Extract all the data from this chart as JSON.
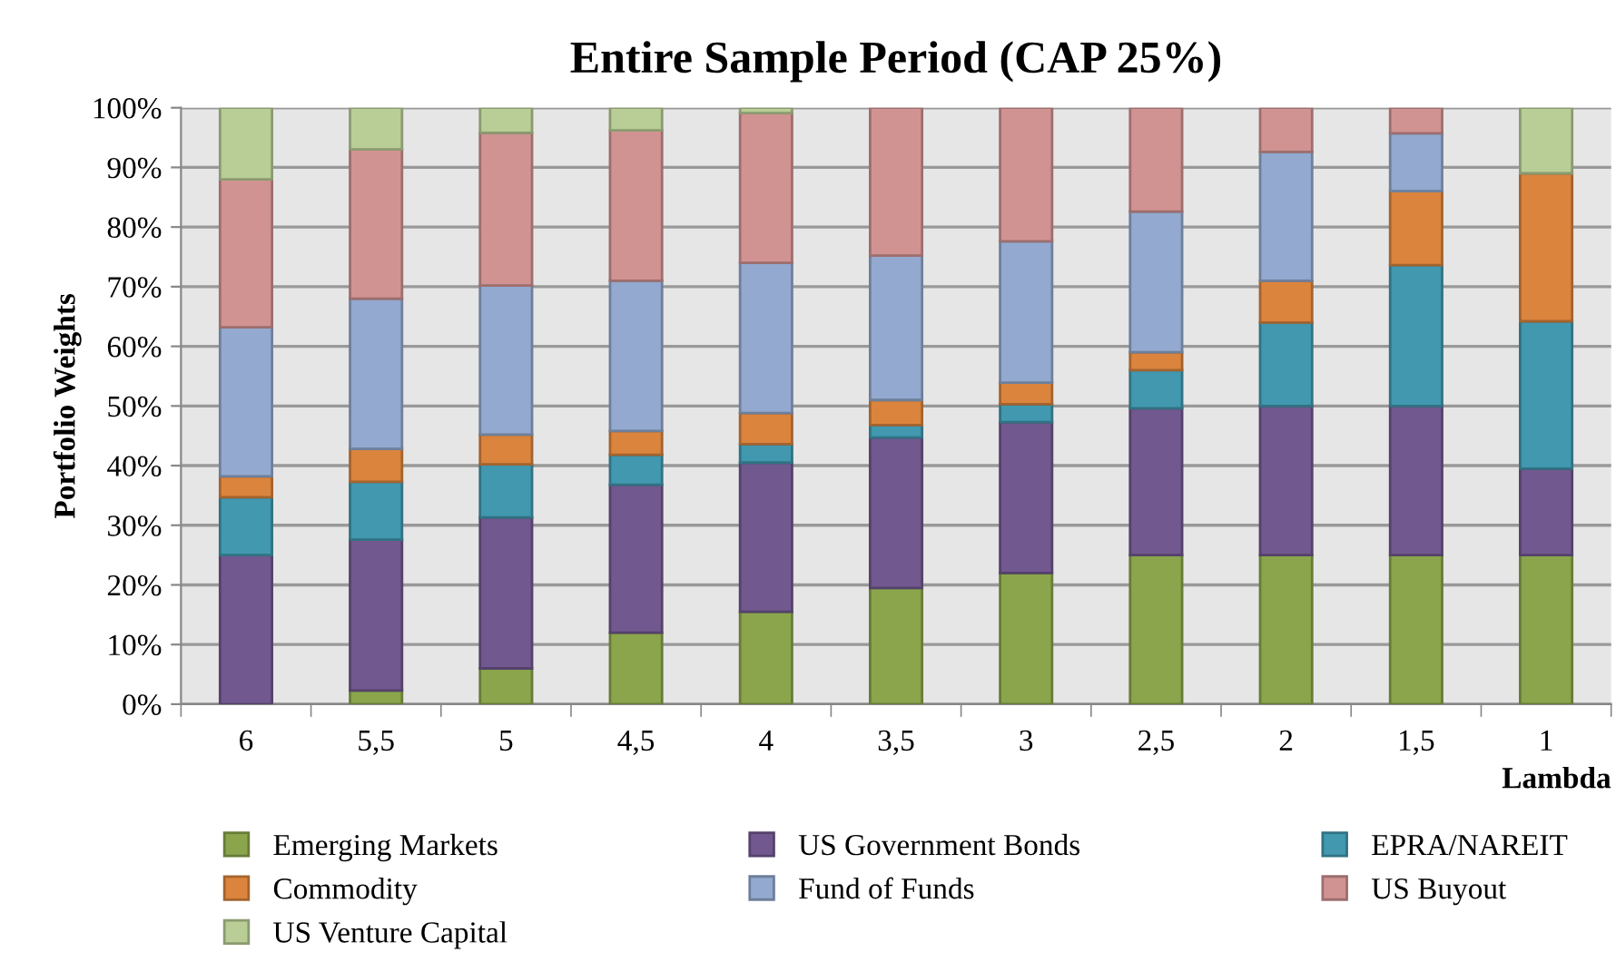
{
  "chart_data": {
    "type": "bar",
    "title": "Entire Sample Period (CAP 25%)",
    "ylabel": "Portfolio Weights",
    "xlabel": "Lambda",
    "categories": [
      "6",
      "5,5",
      "5",
      "4,5",
      "4",
      "3,5",
      "3",
      "2,5",
      "2",
      "1,5",
      "1"
    ],
    "stacked": true,
    "series": [
      {
        "color": "#be4b48",
        "values": [
          0,
          0,
          0,
          0,
          0,
          0,
          0,
          0,
          0,
          0,
          0
        ]
      },
      {
        "name": "Emerging Markets",
        "color": "#8aa54c",
        "values": [
          0,
          2.3,
          6,
          12,
          15.5,
          19.5,
          22,
          25,
          25,
          25,
          25
        ]
      },
      {
        "name": "US Government Bonds",
        "color": "#71588f",
        "values": [
          25,
          25.3,
          25.3,
          24.8,
          25,
          25.2,
          25.3,
          24.6,
          25,
          25,
          14.5
        ]
      },
      {
        "name": "EPRA/NAREIT",
        "color": "#4198af",
        "values": [
          9.7,
          9.7,
          8.9,
          5,
          3.1,
          2.1,
          3,
          6.4,
          14,
          23.6,
          24.7
        ]
      },
      {
        "name": "Commodity",
        "color": "#db843d",
        "values": [
          3.5,
          5.5,
          5,
          4,
          5.2,
          4.2,
          3.6,
          3,
          7,
          12.4,
          24.8
        ]
      },
      {
        "name": "Fund of Funds",
        "color": "#93a9cf",
        "values": [
          25,
          25.2,
          25,
          25.2,
          25.2,
          24.2,
          23.7,
          23.6,
          21.6,
          9.7,
          0
        ]
      },
      {
        "name": "US Buyout",
        "color": "#d19392",
        "values": [
          24.8,
          25,
          25.6,
          25.2,
          25.1,
          24.8,
          22.4,
          17.4,
          7.4,
          4.3,
          0
        ]
      },
      {
        "name": "US Venture Capital",
        "color": "#b9cd96",
        "values": [
          12,
          7,
          4.2,
          3.8,
          0.9,
          0,
          0,
          0,
          0,
          0,
          11
        ]
      }
    ],
    "ylim": [
      0,
      100
    ],
    "yticks": [
      {
        "value": 0,
        "label": "0%"
      },
      {
        "value": 10,
        "label": "10%"
      },
      {
        "value": 20,
        "label": "20%"
      },
      {
        "value": 30,
        "label": "30%"
      },
      {
        "value": 40,
        "label": "40%"
      },
      {
        "value": 50,
        "label": "50%"
      },
      {
        "value": 60,
        "label": "60%"
      },
      {
        "value": 70,
        "label": "70%"
      },
      {
        "value": 80,
        "label": "80%"
      },
      {
        "value": 90,
        "label": "90%"
      },
      {
        "value": 100,
        "label": "100%"
      }
    ],
    "grid": "y",
    "legend": "bottom"
  }
}
